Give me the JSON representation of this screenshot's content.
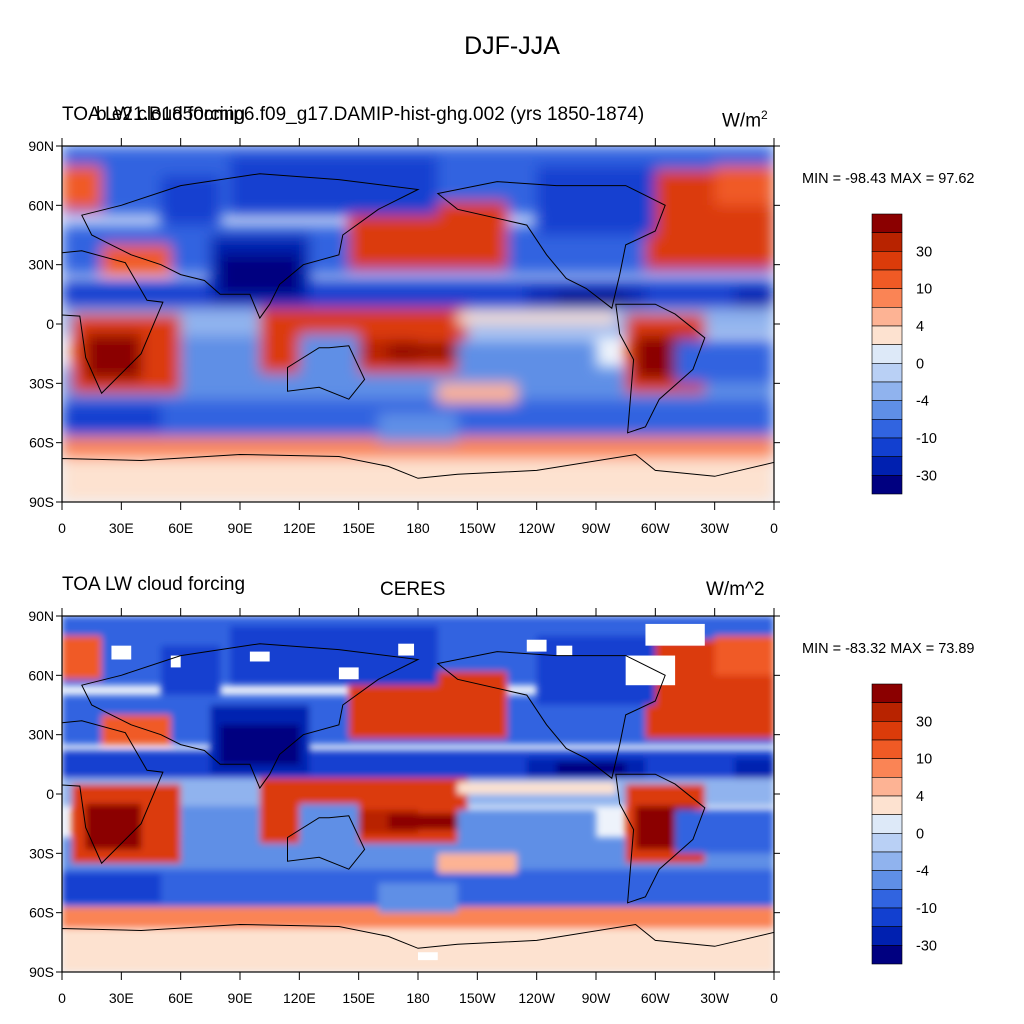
{
  "figure_title": "DJF-JJA",
  "colors": {
    "levels_hex": [
      "#8b0000",
      "#b82300",
      "#db3b0a",
      "#f05a25",
      "#fa8455",
      "#fdb394",
      "#fde2d0",
      "#dde9f8",
      "#b9d0f5",
      "#90b3ee",
      "#5f8fe6",
      "#3164e0",
      "#1240d0",
      "#0020b0",
      "#000080"
    ],
    "ocean_neutral": "#eef3fb",
    "missing": "#ffffff"
  },
  "panels": [
    {
      "left_title": "TOA LW cloud forcing",
      "center_title": "b.e21.B1850cmip6.f09_g17.DAMIP-hist-ghg.002 (yrs 1850-1874)",
      "right_title": "W/m",
      "right_sup": "2",
      "stats": "MIN = -98.43 MAX =  97.62"
    },
    {
      "left_title": "TOA LW cloud forcing",
      "center_title": "CERES",
      "right_title": "W/m^2",
      "right_sup": "",
      "stats": "MIN = -83.32 MAX =  73.89"
    }
  ],
  "lat_labels": [
    "90N",
    "60N",
    "30N",
    "0",
    "30S",
    "60S",
    "90S"
  ],
  "lon_labels": [
    "0",
    "30E",
    "60E",
    "90E",
    "120E",
    "150E",
    "180",
    "150W",
    "120W",
    "90W",
    "60W",
    "30W",
    "0"
  ],
  "colorbar_labels": [
    "30",
    "10",
    "4",
    "0",
    "-4",
    "-10",
    "-30"
  ],
  "chart_data": {
    "type": "heatmap",
    "title": "DJF-JJA",
    "units": "W/m^2",
    "x_axis": {
      "labels": [
        "0",
        "30E",
        "60E",
        "90E",
        "120E",
        "150E",
        "180",
        "150W",
        "120W",
        "90W",
        "60W",
        "30W",
        "0"
      ],
      "range": [
        0,
        360
      ]
    },
    "y_axis": {
      "labels": [
        "90N",
        "60N",
        "30N",
        "0",
        "30S",
        "60S",
        "90S"
      ],
      "range": [
        90,
        -90
      ]
    },
    "contour_levels_labeled": [
      30,
      10,
      4,
      0,
      -4,
      -10,
      -30
    ],
    "panels": [
      {
        "name": "b.e21.B1850cmip6.f09_g17.DAMIP-hist-ghg.002 (yrs 1850-1874)",
        "min": -98.43,
        "max": 97.62
      },
      {
        "name": "CERES",
        "min": -83.32,
        "max": 73.89
      }
    ]
  }
}
